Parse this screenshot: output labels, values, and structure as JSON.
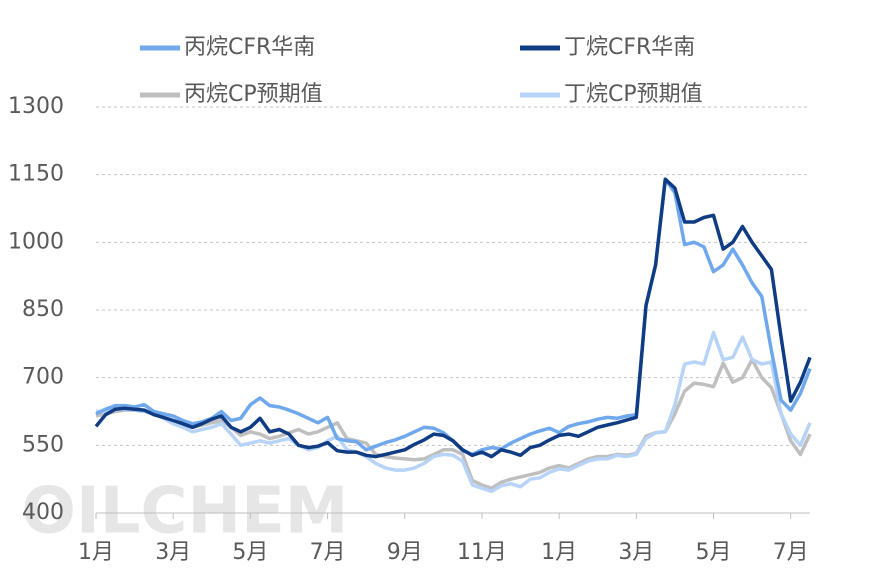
{
  "chart_data": {
    "type": "line",
    "watermark": "OILCHEM",
    "categories": [
      "1月",
      null,
      null,
      null,
      null,
      null,
      null,
      null,
      "3月",
      null,
      null,
      null,
      null,
      null,
      null,
      null,
      "5月",
      null,
      null,
      null,
      null,
      null,
      null,
      null,
      "7月",
      null,
      null,
      null,
      null,
      null,
      null,
      null,
      "9月",
      null,
      null,
      null,
      null,
      null,
      null,
      null,
      "11月",
      null,
      null,
      null,
      null,
      null,
      null,
      null,
      "1月",
      null,
      null,
      null,
      null,
      null,
      null,
      null,
      "3月",
      null,
      null,
      null,
      null,
      null,
      null,
      null,
      "5月",
      null,
      null,
      null,
      null,
      null,
      null,
      null,
      "7月",
      null,
      null
    ],
    "series": [
      {
        "name": "丙烷CFR华南",
        "color": "#6fa8ec",
        "values": [
          620,
          630,
          638,
          638,
          635,
          640,
          625,
          620,
          615,
          605,
          598,
          602,
          610,
          625,
          605,
          610,
          640,
          655,
          638,
          635,
          628,
          620,
          610,
          600,
          612,
          565,
          560,
          558,
          540,
          548,
          556,
          562,
          570,
          580,
          590,
          588,
          578,
          560,
          538,
          530,
          540,
          545,
          542,
          555,
          565,
          575,
          582,
          588,
          578,
          592,
          598,
          602,
          608,
          612,
          610,
          615,
          618,
          860,
          950,
          1140,
          1110,
          995,
          1000,
          990,
          935,
          950,
          985,
          950,
          910,
          880,
          760,
          650,
          628,
          665,
          720
        ]
      },
      {
        "name": "丁烷CFR华南",
        "color": "#0f3c82",
        "values": [
          592,
          618,
          630,
          632,
          630,
          628,
          618,
          612,
          605,
          598,
          590,
          598,
          608,
          615,
          590,
          580,
          590,
          610,
          580,
          585,
          575,
          550,
          545,
          548,
          556,
          538,
          535,
          535,
          528,
          525,
          530,
          535,
          540,
          552,
          562,
          575,
          572,
          560,
          540,
          528,
          535,
          525,
          540,
          535,
          528,
          545,
          550,
          562,
          572,
          575,
          570,
          580,
          590,
          595,
          600,
          606,
          612,
          860,
          950,
          1140,
          1120,
          1045,
          1045,
          1055,
          1060,
          985,
          1000,
          1035,
          1000,
          970,
          940,
          790,
          648,
          690,
          745
        ]
      },
      {
        "name": "丙烷CP预期值",
        "color": "#bfbfbf",
        "values": [
          615,
          620,
          625,
          628,
          628,
          625,
          622,
          612,
          600,
          596,
          590,
          595,
          600,
          605,
          590,
          572,
          580,
          575,
          565,
          570,
          578,
          585,
          575,
          580,
          590,
          600,
          565,
          560,
          555,
          530,
          525,
          522,
          520,
          518,
          520,
          530,
          540,
          540,
          530,
          472,
          462,
          455,
          468,
          475,
          480,
          485,
          490,
          500,
          505,
          500,
          510,
          520,
          525,
          525,
          530,
          528,
          532,
          570,
          578,
          580,
          620,
          670,
          688,
          685,
          680,
          732,
          690,
          700,
          740,
          700,
          678,
          620,
          560,
          530,
          575
        ]
      },
      {
        "name": "丁烷CP预期值",
        "color": "#b7d3f7",
        "values": [
          625,
          625,
          630,
          630,
          628,
          625,
          620,
          610,
          598,
          590,
          580,
          585,
          590,
          598,
          575,
          550,
          555,
          560,
          555,
          560,
          565,
          550,
          540,
          545,
          560,
          570,
          540,
          535,
          525,
          510,
          500,
          495,
          495,
          500,
          510,
          525,
          530,
          528,
          515,
          462,
          455,
          448,
          460,
          465,
          458,
          475,
          478,
          490,
          498,
          495,
          505,
          515,
          520,
          520,
          528,
          525,
          530,
          565,
          578,
          580,
          640,
          730,
          735,
          730,
          800,
          740,
          745,
          790,
          740,
          730,
          735,
          620,
          575,
          550,
          600
        ]
      }
    ],
    "ylim": [
      400,
      1300
    ],
    "yticks": [
      400,
      550,
      700,
      850,
      1000,
      1150,
      1300
    ],
    "grid": true
  }
}
